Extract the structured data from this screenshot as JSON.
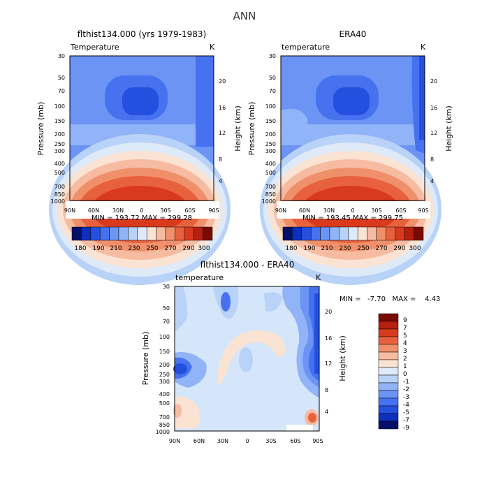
{
  "page": {
    "title": "ANN"
  },
  "chart_data": [
    {
      "type": "heatmap",
      "title": "flthist134.000 (yrs 1979-1983)",
      "subtitle_left": "Temperature",
      "subtitle_right": "K",
      "ylabel": "Pressure (mb)",
      "ylabel_right": "Height (km)",
      "x_ticks": [
        "90N",
        "60N",
        "30N",
        "0",
        "30S",
        "60S",
        "90S"
      ],
      "y_ticks": [
        "30",
        "50",
        "70",
        "100",
        "150",
        "200",
        "250",
        "300",
        "400",
        "500",
        "700",
        "850",
        "1000"
      ],
      "y_ticks_right": [
        "20",
        "16",
        "12",
        "8",
        "4"
      ],
      "stats": "MIN = 193.72   MAX = 299.28",
      "colorbar": {
        "levels": [
          "180",
          "190",
          "200",
          "210",
          "220",
          "230",
          "240",
          "250",
          "260",
          "270",
          "280",
          "290",
          "300"
        ],
        "labels": [
          "180",
          "190",
          "210",
          "230",
          "250",
          "270",
          "290",
          "300"
        ],
        "colors": [
          "#05106b",
          "#0d2fbd",
          "#2450e0",
          "#4672f0",
          "#6b94f5",
          "#91b3f7",
          "#b8d2f8",
          "#dfeaf8",
          "#fbe3d3",
          "#f6bba0",
          "#f0906b",
          "#e8613e",
          "#d93a1e",
          "#b51f10",
          "#7a0a05"
        ]
      }
    },
    {
      "type": "heatmap",
      "title": "ERA40",
      "subtitle_left": "temperature",
      "subtitle_right": "K",
      "ylabel": "Pressure (mb)",
      "ylabel_right": "Height (km)",
      "x_ticks": [
        "90N",
        "60N",
        "30N",
        "0",
        "30S",
        "60S",
        "90S"
      ],
      "y_ticks": [
        "30",
        "50",
        "70",
        "100",
        "150",
        "200",
        "250",
        "300",
        "400",
        "500",
        "700",
        "850",
        "1000"
      ],
      "y_ticks_right": [
        "20",
        "16",
        "12",
        "8",
        "4"
      ],
      "stats": "MIN = 193.45   MAX = 299.75",
      "colorbar": {
        "levels": [
          "180",
          "190",
          "200",
          "210",
          "220",
          "230",
          "240",
          "250",
          "260",
          "270",
          "280",
          "290",
          "300"
        ],
        "labels": [
          "180",
          "190",
          "210",
          "230",
          "250",
          "270",
          "290",
          "300"
        ],
        "colors": [
          "#05106b",
          "#0d2fbd",
          "#2450e0",
          "#4672f0",
          "#6b94f5",
          "#91b3f7",
          "#b8d2f8",
          "#dfeaf8",
          "#fbe3d3",
          "#f6bba0",
          "#f0906b",
          "#e8613e",
          "#d93a1e",
          "#b51f10",
          "#7a0a05"
        ]
      }
    },
    {
      "type": "heatmap",
      "title": "flthist134.000 - ERA40",
      "subtitle_left": "temperature",
      "subtitle_right": "K",
      "ylabel": "Pressure (mb)",
      "ylabel_right": "Height (km)",
      "x_ticks": [
        "90N",
        "60N",
        "30N",
        "0",
        "30S",
        "60S",
        "90S"
      ],
      "y_ticks": [
        "30",
        "50",
        "70",
        "100",
        "150",
        "200",
        "250",
        "300",
        "400",
        "500",
        "700",
        "850",
        "1000"
      ],
      "y_ticks_right": [
        "20",
        "16",
        "12",
        "8",
        "4"
      ],
      "stats": "MIN =   -7.70   MAX =    4.43",
      "colorbar": {
        "labels": [
          "9",
          "7",
          "5",
          "4",
          "3",
          "2",
          "1",
          "0",
          "-1",
          "-2",
          "-3",
          "-4",
          "-5",
          "-7",
          "-9"
        ],
        "colors": [
          "#7a0a05",
          "#b51f10",
          "#d93a1e",
          "#e8613e",
          "#f0906b",
          "#f6bba0",
          "#fbe3d3",
          "#dfeaf8",
          "#b8d2f8",
          "#91b3f7",
          "#6b94f5",
          "#4672f0",
          "#2450e0",
          "#0d2fbd",
          "#05106b"
        ]
      }
    }
  ],
  "colors": {
    "bg_diff": "#d6e6fa",
    "cold_1": "#6b94f5",
    "cold_2": "#2450e0",
    "bands": [
      "#2450e0",
      "#4672f0",
      "#6b94f5",
      "#91b3f7",
      "#b8d2f8",
      "#dfeaf8",
      "#fbe3d3",
      "#f6bba0",
      "#f0906b",
      "#e8613e",
      "#d93a1e",
      "#b51f10"
    ]
  }
}
